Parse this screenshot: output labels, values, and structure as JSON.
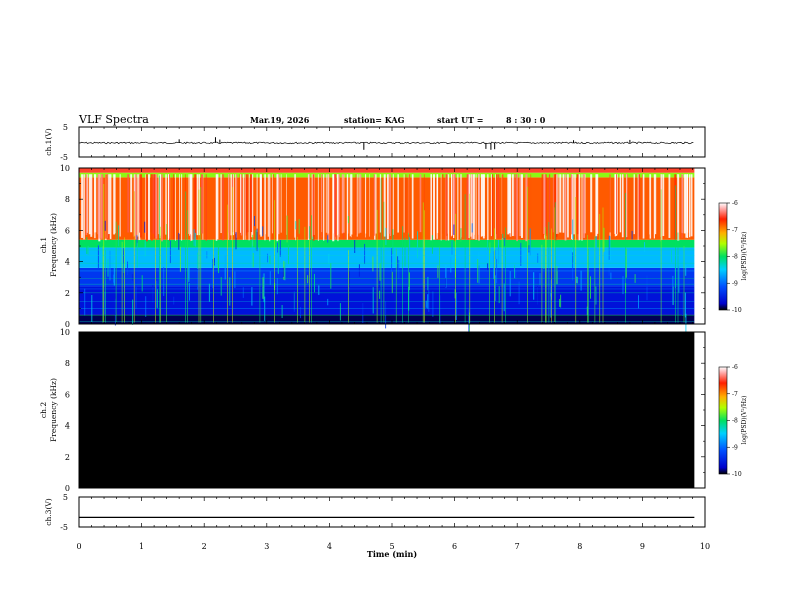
{
  "header": {
    "title": "VLF Spectra",
    "date": "Mar.19, 2026",
    "station": "station= KAG",
    "start_label": "start UT =",
    "start_time": "8 : 30 : 0"
  },
  "chart_data": [
    {
      "type": "line",
      "panel": "ch1-waveform",
      "ylabel": "ch.1(V)",
      "ylim": [
        -5,
        5
      ],
      "y_ticks": [
        "5",
        "-5"
      ],
      "xlim": [
        0,
        10
      ],
      "x_end_min": 9.83,
      "baseline": -0.3,
      "spikes": [
        {
          "t": 1.6,
          "v": 0.9
        },
        {
          "t": 2.18,
          "v": 1.6
        },
        {
          "t": 2.25,
          "v": 0.8
        },
        {
          "t": 4.55,
          "v": -2.6
        },
        {
          "t": 6.5,
          "v": -2.3
        },
        {
          "t": 6.58,
          "v": -2.6
        },
        {
          "t": 6.64,
          "v": -2.4
        },
        {
          "t": 7.9,
          "v": 0.6
        },
        {
          "t": 8.8,
          "v": 0.7
        }
      ]
    },
    {
      "type": "heatmap",
      "panel": "ch1-spectrogram",
      "ylabel_top": "ch.1",
      "ylabel": "Frequency (kHz)",
      "ylim": [
        0,
        10
      ],
      "y_ticks": [
        "0",
        "2",
        "4",
        "6",
        "8",
        "10"
      ],
      "xlim": [
        0,
        10
      ],
      "x_end_min": 9.83,
      "colorbar_label": "log(PSD)(V²/Hz)",
      "colorbar_ticks": [
        "-6",
        "-7",
        "-8",
        "-9",
        "-10"
      ],
      "crange": [
        -10,
        -6
      ],
      "bands": [
        {
          "f": [
            0,
            0.6
          ],
          "level": -9.9
        },
        {
          "f": [
            0.6,
            2.4
          ],
          "level": -9.6
        },
        {
          "f": [
            2.4,
            3.6
          ],
          "level": -9.3
        },
        {
          "f": [
            3.6,
            4.9
          ],
          "level": -8.6
        },
        {
          "f": [
            4.9,
            5.4
          ],
          "level": -8.0
        },
        {
          "f": [
            5.4,
            9.4
          ],
          "level": -6.8
        },
        {
          "f": [
            9.4,
            9.7
          ],
          "level": -7.6
        },
        {
          "f": [
            9.7,
            10
          ],
          "level": -6.5
        }
      ]
    },
    {
      "type": "heatmap",
      "panel": "ch2-spectrogram",
      "ylabel_top": "ch.2",
      "ylabel": "Frequency (kHz)",
      "ylim": [
        0,
        10
      ],
      "y_ticks": [
        "0",
        "2",
        "4",
        "6",
        "8",
        "10"
      ],
      "xlim": [
        0,
        10
      ],
      "x_end_min": 9.83,
      "fill": "no data",
      "colorbar_label": "log(PSD)(V²/Hz)",
      "colorbar_ticks": [
        "-6",
        "-7",
        "-8",
        "-9",
        "-10"
      ],
      "crange": [
        -10,
        -6
      ]
    },
    {
      "type": "line",
      "panel": "ch3-waveform",
      "ylabel": "ch.3(V)",
      "ylim": [
        -5,
        5
      ],
      "y_ticks": [
        "5",
        "-5"
      ],
      "xlim": [
        0,
        10
      ],
      "x_end_min": 9.83,
      "baseline": -1.8,
      "xlabel": "Time (min)",
      "x_ticks": [
        "0",
        "1",
        "2",
        "3",
        "4",
        "5",
        "6",
        "7",
        "8",
        "9",
        "10"
      ]
    }
  ]
}
